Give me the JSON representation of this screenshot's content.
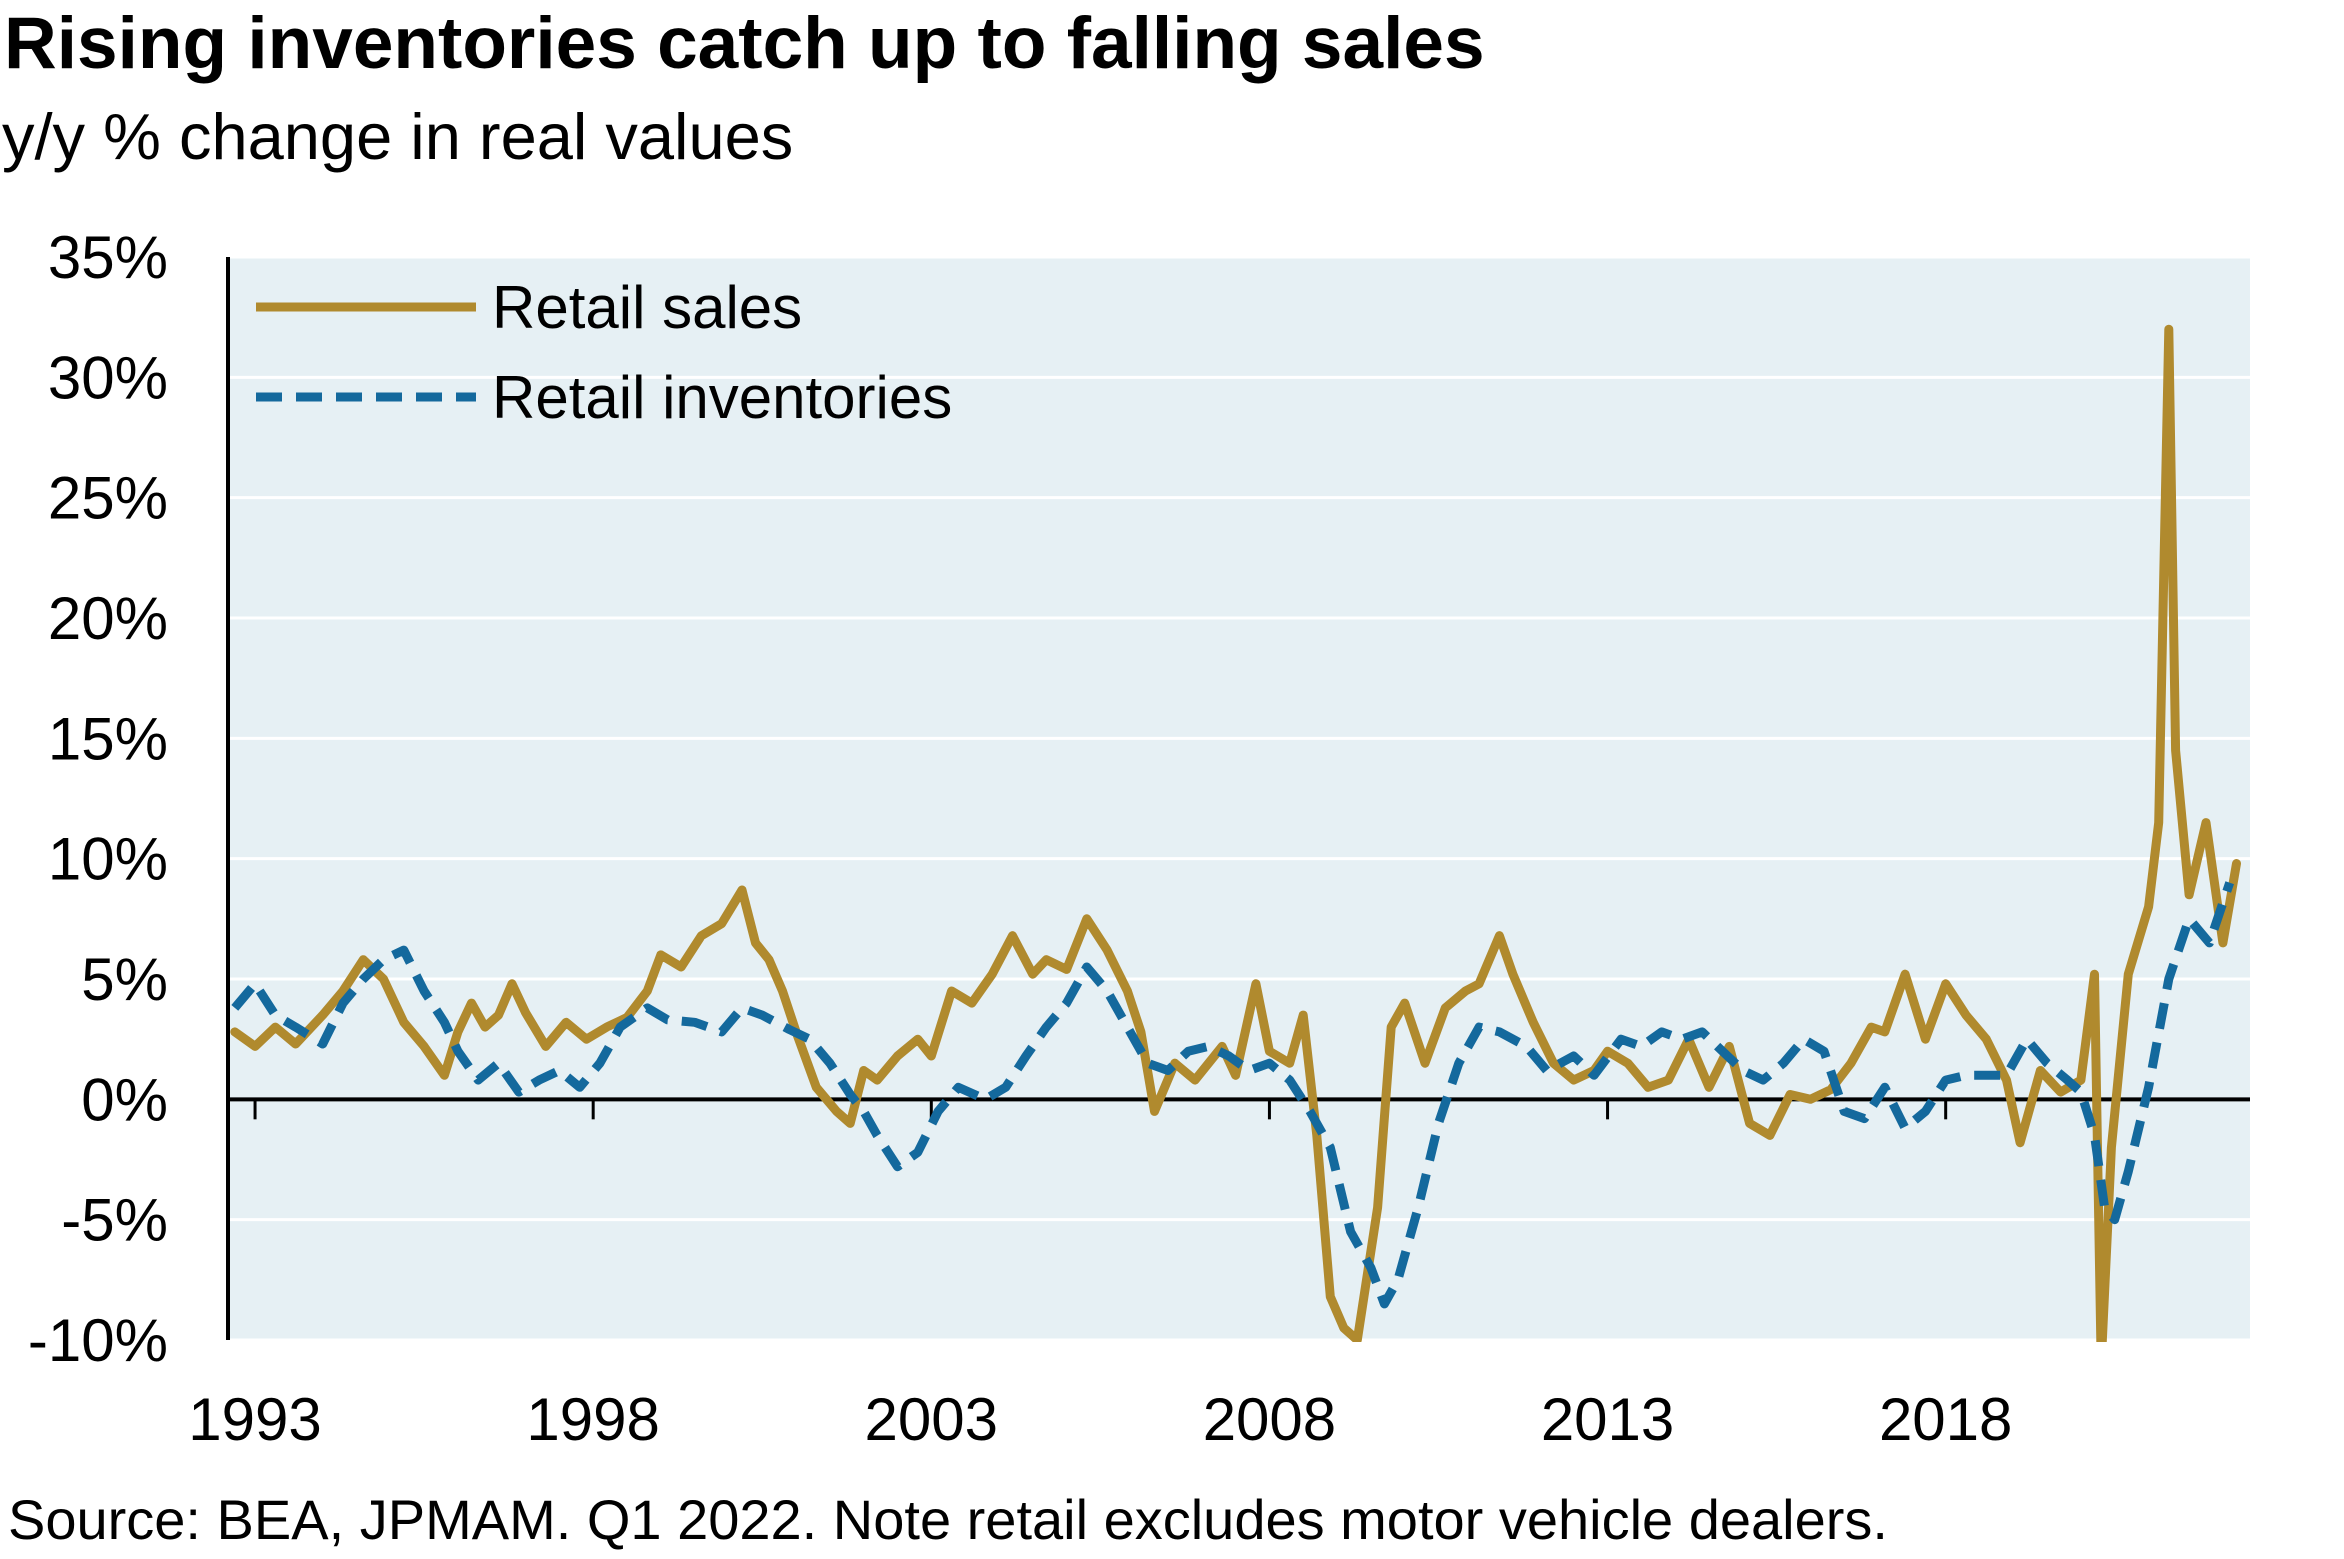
{
  "chart_data": {
    "type": "line",
    "title": "Rising inventories catch up to falling sales",
    "subtitle": "y/y % change in real values",
    "source": "Source: BEA, JPMAM. Q1 2022. Note retail excludes motor vehicle dealers.",
    "x_tick_labels": [
      "1993",
      "1998",
      "2003",
      "2008",
      "2013",
      "2018"
    ],
    "x_ticks": [
      1993,
      1998,
      2003,
      2008,
      2013,
      2018
    ],
    "xlim": [
      1992.6,
      2022.5
    ],
    "ylim": [
      -10,
      35
    ],
    "y_ticks": [
      -10,
      -5,
      0,
      5,
      10,
      15,
      20,
      25,
      30,
      35
    ],
    "y_tick_labels": [
      "-10%",
      "-5%",
      "0%",
      "5%",
      "10%",
      "15%",
      "20%",
      "25%",
      "30%",
      "35%"
    ],
    "grid": true,
    "legend_position": "top-left",
    "colors": {
      "plot_background": "#e6f0f4",
      "retail_sales": "#b08a2e",
      "retail_inventories": "#14699d"
    },
    "series": [
      {
        "name": "Retail sales",
        "style": "solid",
        "x": [
          1992.7,
          1993.0,
          1993.3,
          1993.6,
          1994.0,
          1994.3,
          1994.6,
          1994.9,
          1995.2,
          1995.5,
          1995.8,
          1996.0,
          1996.2,
          1996.4,
          1996.6,
          1996.8,
          1997.0,
          1997.3,
          1997.6,
          1997.9,
          1998.2,
          1998.5,
          1998.8,
          1999.0,
          1999.3,
          1999.6,
          1999.9,
          2000.2,
          2000.4,
          2000.6,
          2000.8,
          2001.0,
          2001.3,
          2001.6,
          2001.8,
          2002.0,
          2002.2,
          2002.5,
          2002.8,
          2003.0,
          2003.3,
          2003.6,
          2003.9,
          2004.2,
          2004.5,
          2004.7,
          2005.0,
          2005.3,
          2005.6,
          2005.9,
          2006.1,
          2006.3,
          2006.6,
          2006.9,
          2007.1,
          2007.3,
          2007.5,
          2007.8,
          2008.0,
          2008.3,
          2008.5,
          2008.7,
          2008.9,
          2009.1,
          2009.3,
          2009.6,
          2009.8,
          2010.0,
          2010.3,
          2010.6,
          2010.9,
          2011.1,
          2011.4,
          2011.6,
          2011.9,
          2012.2,
          2012.5,
          2012.8,
          2013.0,
          2013.3,
          2013.6,
          2013.9,
          2014.2,
          2014.5,
          2014.8,
          2015.1,
          2015.4,
          2015.7,
          2016.0,
          2016.3,
          2016.6,
          2016.9,
          2017.1,
          2017.4,
          2017.7,
          2018.0,
          2018.3,
          2018.6,
          2018.9,
          2019.1,
          2019.4,
          2019.7,
          2020.0,
          2020.2,
          2020.3,
          2020.45,
          2020.7,
          2021.0,
          2021.15,
          2021.3,
          2021.4,
          2021.6,
          2021.85,
          2022.1,
          2022.3
        ],
        "values": [
          2.8,
          2.2,
          3.0,
          2.3,
          3.5,
          4.5,
          5.8,
          5.0,
          3.2,
          2.2,
          1.0,
          2.8,
          4.0,
          3.0,
          3.5,
          4.8,
          3.6,
          2.2,
          3.2,
          2.5,
          3.0,
          3.4,
          4.5,
          6.0,
          5.5,
          6.8,
          7.3,
          8.7,
          6.5,
          5.8,
          4.5,
          2.8,
          0.5,
          -0.5,
          -1.0,
          1.2,
          0.8,
          1.8,
          2.5,
          1.8,
          4.5,
          4.0,
          5.2,
          6.8,
          5.2,
          5.8,
          5.4,
          7.5,
          6.2,
          4.5,
          2.8,
          -0.5,
          1.5,
          0.8,
          1.5,
          2.2,
          1.0,
          4.8,
          2.0,
          1.5,
          3.5,
          -1.5,
          -8.2,
          -9.5,
          -10.0,
          -4.5,
          3.0,
          4.0,
          1.5,
          3.8,
          4.5,
          4.8,
          6.8,
          5.2,
          3.2,
          1.5,
          0.8,
          1.2,
          2.0,
          1.5,
          0.5,
          0.8,
          2.5,
          0.5,
          2.2,
          -1.0,
          -1.5,
          0.2,
          0.0,
          0.4,
          1.5,
          3.0,
          2.8,
          5.2,
          2.5,
          4.8,
          3.5,
          2.5,
          0.8,
          -1.8,
          1.2,
          0.3,
          0.8,
          5.2,
          -11.0,
          -2.0,
          5.2,
          8.0,
          11.5,
          32.0,
          14.5,
          8.5,
          11.5,
          6.5,
          9.8
        ]
      },
      {
        "name": "Retail inventories",
        "style": "dashed",
        "x": [
          1992.7,
          1993.0,
          1993.3,
          1993.6,
          1994.0,
          1994.3,
          1994.6,
          1994.9,
          1995.2,
          1995.5,
          1995.8,
          1996.0,
          1996.3,
          1996.6,
          1996.9,
          1997.2,
          1997.5,
          1997.8,
          1998.1,
          1998.4,
          1998.8,
          1999.1,
          1999.5,
          1999.9,
          2000.2,
          2000.5,
          2000.9,
          2001.2,
          2001.5,
          2001.8,
          2002.0,
          2002.2,
          2002.5,
          2002.8,
          2003.1,
          2003.4,
          2003.8,
          2004.1,
          2004.4,
          2004.7,
          2005.0,
          2005.3,
          2005.6,
          2005.9,
          2006.2,
          2006.5,
          2006.8,
          2007.1,
          2007.4,
          2007.7,
          2008.0,
          2008.3,
          2008.6,
          2008.9,
          2009.2,
          2009.5,
          2009.7,
          2009.9,
          2010.2,
          2010.5,
          2010.8,
          2011.1,
          2011.4,
          2011.8,
          2012.1,
          2012.5,
          2012.8,
          2013.2,
          2013.5,
          2013.8,
          2014.1,
          2014.4,
          2014.7,
          2015.0,
          2015.3,
          2015.6,
          2015.9,
          2016.2,
          2016.5,
          2016.8,
          2017.1,
          2017.4,
          2017.7,
          2018.0,
          2018.3,
          2018.6,
          2018.9,
          2019.2,
          2019.5,
          2019.8,
          2020.0,
          2020.2,
          2020.35,
          2020.5,
          2020.7,
          2021.0,
          2021.3,
          2021.6,
          2021.9,
          2022.2
        ],
        "values": [
          3.8,
          4.8,
          3.5,
          3.0,
          2.3,
          4.0,
          5.0,
          5.8,
          6.2,
          4.5,
          3.2,
          2.0,
          0.8,
          1.5,
          0.3,
          0.8,
          1.2,
          0.5,
          1.5,
          3.0,
          3.8,
          3.3,
          3.2,
          2.8,
          3.8,
          3.5,
          2.9,
          2.5,
          1.5,
          0.2,
          -0.5,
          -1.5,
          -2.8,
          -2.2,
          -0.5,
          0.5,
          0.0,
          0.5,
          1.8,
          3.0,
          4.0,
          5.5,
          4.5,
          3.0,
          1.5,
          1.2,
          2.0,
          2.2,
          1.8,
          1.2,
          1.5,
          0.8,
          -0.5,
          -2.0,
          -5.5,
          -7.0,
          -8.5,
          -7.5,
          -4.5,
          -1.0,
          1.5,
          3.0,
          2.8,
          2.2,
          1.2,
          1.8,
          1.0,
          2.5,
          2.2,
          2.8,
          2.5,
          2.8,
          2.0,
          1.2,
          0.8,
          1.5,
          2.5,
          2.0,
          -0.5,
          -0.8,
          0.5,
          -1.2,
          -0.5,
          0.8,
          1.0,
          1.0,
          1.0,
          2.5,
          1.5,
          0.8,
          0.3,
          -1.5,
          -4.5,
          -5.0,
          -3.0,
          0.5,
          5.0,
          7.5,
          6.5,
          9.0
        ]
      }
    ]
  }
}
